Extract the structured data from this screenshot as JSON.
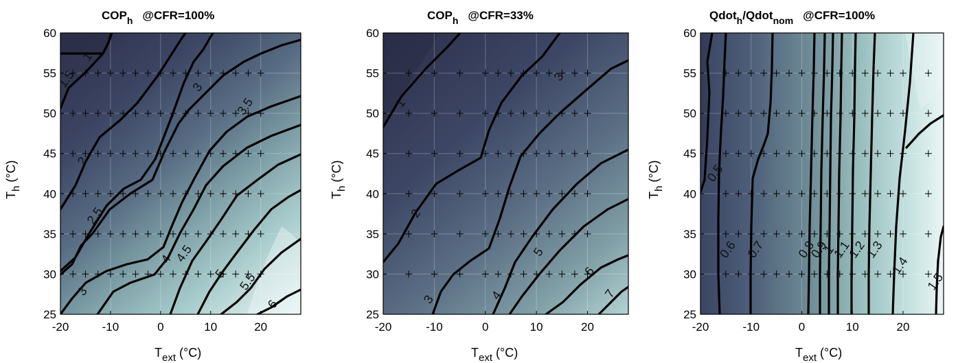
{
  "chart_data": [
    {
      "type": "contour",
      "title": {
        "main": "COP",
        "sub": "h",
        "suffix": "@CFR=100%"
      },
      "xlabel": {
        "main": "T",
        "sub": "ext",
        "suffix": " (°C)"
      },
      "ylabel": {
        "main": "T",
        "sub": "h",
        "suffix": " (°C)"
      },
      "xlim": [
        -20,
        28
      ],
      "ylim": [
        25,
        60
      ],
      "xticks": [
        "-20",
        "-10",
        "0",
        "10",
        "20"
      ],
      "yticks": [
        "25",
        "30",
        "35",
        "40",
        "45",
        "50",
        "55",
        "60"
      ],
      "grid": true,
      "sample_points": {
        "x": [
          -20,
          -17.5,
          -15,
          -12.5,
          -10,
          -7.5,
          -5,
          -2.5,
          0,
          2.5,
          5,
          7.5,
          10,
          12.5,
          15,
          17.5,
          20
        ],
        "y": [
          30,
          35,
          40,
          45,
          50,
          55
        ]
      },
      "contour_levels": [
        1,
        1.5,
        2,
        2.5,
        3,
        3.5,
        4,
        4.5,
        5,
        5.5,
        6
      ],
      "level_labels": [
        {
          "text": "1",
          "x": -14.5,
          "y": 57
        },
        {
          "text": "1.5",
          "x": -18.7,
          "y": 54.2
        },
        {
          "text": "2",
          "x": -15.5,
          "y": 44
        },
        {
          "text": "2.5",
          "x": -13,
          "y": 37.2
        },
        {
          "text": "3",
          "x": 7.5,
          "y": 53.2
        },
        {
          "text": "3.5",
          "x": 17,
          "y": 50.8
        },
        {
          "text": "3",
          "x": -15.5,
          "y": 27.8
        },
        {
          "text": "4",
          "x": 1.2,
          "y": 31.8
        },
        {
          "text": "4.5",
          "x": 4.8,
          "y": 32.5
        },
        {
          "text": "5",
          "x": 12,
          "y": 30
        },
        {
          "text": "5.5",
          "x": 17.5,
          "y": 29
        },
        {
          "text": "6",
          "x": 22.5,
          "y": 26.2
        }
      ]
    },
    {
      "type": "contour",
      "title": {
        "main": "COP",
        "sub": "h",
        "suffix": "@CFR=33%"
      },
      "xlabel": {
        "main": "T",
        "sub": "ext",
        "suffix": " (°C)"
      },
      "ylabel": {
        "main": "T",
        "sub": "h",
        "suffix": " (°C)"
      },
      "xlim": [
        -20,
        28
      ],
      "ylim": [
        25,
        60
      ],
      "xticks": [
        "-20",
        "-10",
        "0",
        "10",
        "20"
      ],
      "yticks": [
        "25",
        "30",
        "35",
        "40",
        "45",
        "50",
        "55",
        "60"
      ],
      "grid": true,
      "sample_points": {
        "x": [
          -20,
          -15,
          -10,
          -5,
          0,
          2.5,
          5,
          7.5,
          10,
          12.5,
          15,
          17.5,
          20
        ],
        "y": [
          30,
          35,
          40,
          45,
          50,
          55
        ]
      },
      "contour_levels": [
        1,
        2,
        3,
        4,
        5,
        6,
        7
      ],
      "level_labels": [
        {
          "text": "1",
          "x": -16.5,
          "y": 51.2
        },
        {
          "text": "2",
          "x": -13.5,
          "y": 37.5
        },
        {
          "text": "3",
          "x": 14.5,
          "y": 54.5
        },
        {
          "text": "3",
          "x": -11,
          "y": 26.8
        },
        {
          "text": "4",
          "x": 2.3,
          "y": 27.3
        },
        {
          "text": "5",
          "x": 10.5,
          "y": 32.7
        },
        {
          "text": "6",
          "x": 20.5,
          "y": 30.3
        },
        {
          "text": "7",
          "x": 24.5,
          "y": 27.5
        }
      ]
    },
    {
      "type": "contour",
      "title": {
        "main": "Qdot",
        "sub": "h",
        "mid": "/Qdot",
        "sub2": "nom",
        "suffix": "@CFR=100%"
      },
      "xlabel": {
        "main": "T",
        "sub": "ext",
        "suffix": " (°C)"
      },
      "ylabel": {
        "main": "T",
        "sub": "h",
        "suffix": " (°C)"
      },
      "xlim": [
        -20,
        28
      ],
      "ylim": [
        25,
        60
      ],
      "xticks": [
        "-20",
        "-10",
        "0",
        "10",
        "20"
      ],
      "yticks": [
        "25",
        "30",
        "35",
        "40",
        "45",
        "50",
        "55",
        "60"
      ],
      "grid": true,
      "sample_points": {
        "x": [
          -15,
          -12.5,
          -10,
          -7.5,
          -5,
          -2.5,
          0,
          2.5,
          5,
          7.5,
          10,
          12.5,
          15,
          17.5,
          20,
          25
        ],
        "y": [
          30,
          35,
          40,
          45,
          50,
          55
        ]
      },
      "contour_levels": [
        0.5,
        0.6,
        0.7,
        0.8,
        0.9,
        1,
        1.1,
        1.2,
        1.3,
        1.4,
        1.5
      ],
      "level_labels": [
        {
          "text": "0.5",
          "x": -17,
          "y": 42.5
        },
        {
          "text": "0.6",
          "x": -14.5,
          "y": 33
        },
        {
          "text": "0.7",
          "x": -9,
          "y": 33
        },
        {
          "text": "0.8",
          "x": 1,
          "y": 33
        },
        {
          "text": "0.9",
          "x": 3.5,
          "y": 33
        },
        {
          "text": "1",
          "x": 5.5,
          "y": 33
        },
        {
          "text": "1.1",
          "x": 8,
          "y": 33
        },
        {
          "text": "1.2",
          "x": 11,
          "y": 33
        },
        {
          "text": "1.3",
          "x": 14.5,
          "y": 33
        },
        {
          "text": "1.4",
          "x": 19.5,
          "y": 31
        },
        {
          "text": "1.5",
          "x": 26.5,
          "y": 29
        }
      ]
    }
  ]
}
